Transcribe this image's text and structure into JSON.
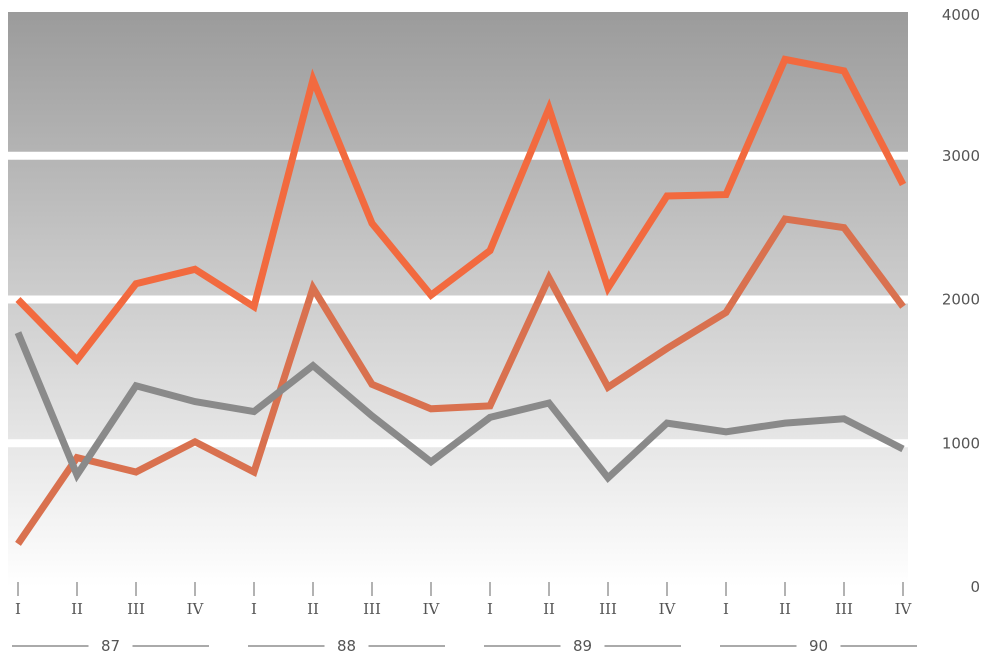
{
  "chart_data": {
    "type": "line",
    "x": [
      "I",
      "II",
      "III",
      "IV",
      "I",
      "II",
      "III",
      "IV",
      "I",
      "II",
      "III",
      "IV",
      "I",
      "II",
      "III",
      "IV"
    ],
    "groups": [
      {
        "label": "87",
        "start": 0,
        "end": 3
      },
      {
        "label": "88",
        "start": 4,
        "end": 7
      },
      {
        "label": "89",
        "start": 8,
        "end": 11
      },
      {
        "label": "90",
        "start": 12,
        "end": 15
      }
    ],
    "series": [
      {
        "values": [
          2000,
          1580,
          2110,
          2210,
          1950,
          3530,
          2530,
          2030,
          2340,
          3330,
          2080,
          2720,
          2730,
          3670,
          3590,
          2800
        ],
        "color": "#f26a3f"
      },
      {
        "values": [
          300,
          900,
          800,
          1010,
          800,
          2080,
          1410,
          1240,
          1260,
          2150,
          1390,
          1660,
          1910,
          2560,
          2500,
          1950
        ],
        "color": "#d9714f"
      },
      {
        "values": [
          1770,
          780,
          1400,
          1290,
          1220,
          1540,
          1190,
          870,
          1180,
          1280,
          760,
          1140,
          1080,
          1140,
          1170,
          960
        ],
        "color": "#8a8a8a"
      }
    ],
    "yticks": [
      0,
      1000,
      2000,
      3000,
      4000
    ],
    "ylim": [
      0,
      4000
    ],
    "grid": true,
    "ylabel": "",
    "xlabel": "",
    "title": ""
  }
}
